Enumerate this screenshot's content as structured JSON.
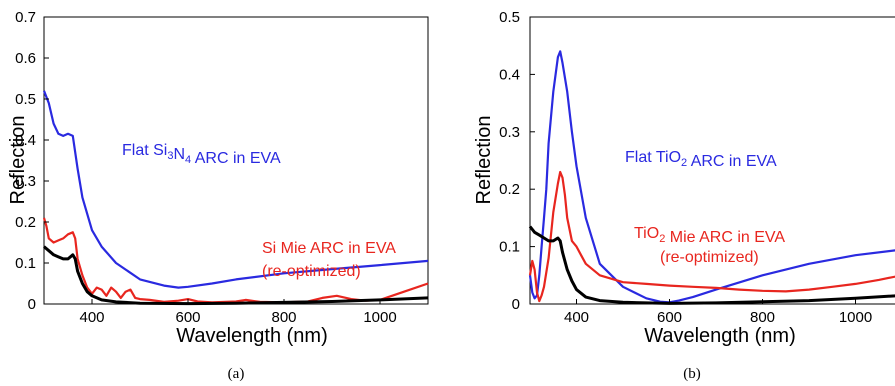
{
  "chart_data": [
    {
      "type": "line",
      "caption": "(a)",
      "xlabel": "Wavelength (nm)",
      "ylabel": "Reflection",
      "xlim": [
        300,
        1100
      ],
      "ylim": [
        0,
        0.7
      ],
      "xticks": [
        "400",
        "600",
        "800",
        "1000"
      ],
      "yticks": [
        "0",
        "0.1",
        "0.2",
        "0.3",
        "0.4",
        "0.5",
        "0.6",
        "0.7"
      ],
      "grid": false,
      "series": [
        {
          "color": "#2a2ae0",
          "x": [
            300,
            310,
            320,
            330,
            340,
            350,
            360,
            370,
            380,
            400,
            420,
            450,
            500,
            550,
            580,
            600,
            650,
            700,
            800,
            900,
            1000,
            1100
          ],
          "y": [
            0.52,
            0.49,
            0.44,
            0.415,
            0.41,
            0.415,
            0.41,
            0.33,
            0.26,
            0.18,
            0.14,
            0.1,
            0.06,
            0.045,
            0.04,
            0.042,
            0.05,
            0.06,
            0.075,
            0.085,
            0.095,
            0.105
          ]
        },
        {
          "color": "#e8261f",
          "x": [
            300,
            305,
            310,
            320,
            330,
            340,
            350,
            360,
            365,
            370,
            380,
            390,
            400,
            410,
            420,
            430,
            440,
            450,
            460,
            470,
            480,
            490,
            500,
            520,
            550,
            580,
            600,
            620,
            650,
            700,
            720,
            750,
            800,
            850,
            880,
            910,
            940,
            970,
            1000,
            1050,
            1100
          ],
          "y": [
            0.21,
            0.19,
            0.16,
            0.15,
            0.155,
            0.16,
            0.17,
            0.175,
            0.16,
            0.11,
            0.07,
            0.04,
            0.025,
            0.04,
            0.035,
            0.02,
            0.04,
            0.03,
            0.015,
            0.03,
            0.035,
            0.015,
            0.012,
            0.01,
            0.005,
            0.008,
            0.012,
            0.006,
            0.004,
            0.006,
            0.01,
            0.005,
            0.004,
            0.006,
            0.015,
            0.02,
            0.012,
            0.008,
            0.01,
            0.03,
            0.05
          ]
        },
        {
          "color": "#000000",
          "x": [
            300,
            310,
            320,
            330,
            340,
            350,
            360,
            365,
            370,
            380,
            390,
            400,
            420,
            450,
            500,
            600,
            700,
            800,
            900,
            1000,
            1100
          ],
          "y": [
            0.14,
            0.13,
            0.12,
            0.115,
            0.11,
            0.11,
            0.12,
            0.11,
            0.08,
            0.05,
            0.03,
            0.02,
            0.01,
            0.005,
            0.002,
            0.001,
            0.002,
            0.004,
            0.006,
            0.01,
            0.015
          ]
        }
      ],
      "annotations": [
        {
          "parts": [
            {
              "t": "Flat Si",
              "sub": false
            },
            {
              "t": "3",
              "sub": true
            },
            {
              "t": "N",
              "sub": false
            },
            {
              "t": "4",
              "sub": true
            },
            {
              "t": " ARC in EVA",
              "sub": false
            }
          ],
          "color": "#2a2ae0"
        },
        {
          "parts": [
            {
              "t": "Si Mie ARC in EVA",
              "sub": false
            }
          ],
          "color": "#e8261f"
        },
        {
          "parts": [
            {
              "t": "(re-optimized)",
              "sub": false
            }
          ],
          "color": "#e8261f"
        }
      ]
    },
    {
      "type": "line",
      "caption": "(b)",
      "xlabel": "Wavelength (nm)",
      "ylabel": "Reflection",
      "xlim": [
        300,
        1100
      ],
      "ylim": [
        0,
        0.5
      ],
      "xticks": [
        "400",
        "600",
        "800",
        "1000"
      ],
      "yticks": [
        "0",
        "0.1",
        "0.2",
        "0.3",
        "0.4",
        "0.5"
      ],
      "grid": false,
      "series": [
        {
          "color": "#2a2ae0",
          "x": [
            300,
            305,
            310,
            315,
            320,
            325,
            330,
            335,
            340,
            350,
            360,
            365,
            370,
            380,
            390,
            400,
            420,
            450,
            500,
            550,
            580,
            600,
            620,
            650,
            700,
            800,
            900,
            1000,
            1100
          ],
          "y": [
            0.05,
            0.02,
            0.01,
            0.015,
            0.05,
            0.1,
            0.15,
            0.2,
            0.28,
            0.37,
            0.43,
            0.44,
            0.42,
            0.37,
            0.3,
            0.24,
            0.15,
            0.07,
            0.03,
            0.01,
            0.004,
            0.003,
            0.006,
            0.012,
            0.025,
            0.05,
            0.07,
            0.085,
            0.095
          ]
        },
        {
          "color": "#e8261f",
          "x": [
            300,
            305,
            310,
            315,
            320,
            325,
            330,
            340,
            350,
            360,
            365,
            370,
            375,
            380,
            390,
            400,
            410,
            420,
            450,
            500,
            550,
            600,
            650,
            700,
            750,
            800,
            850,
            900,
            950,
            1000,
            1050,
            1100
          ],
          "y": [
            0.05,
            0.075,
            0.06,
            0.02,
            0.005,
            0.015,
            0.03,
            0.08,
            0.16,
            0.21,
            0.23,
            0.22,
            0.19,
            0.15,
            0.11,
            0.1,
            0.085,
            0.07,
            0.05,
            0.038,
            0.035,
            0.032,
            0.03,
            0.028,
            0.025,
            0.023,
            0.022,
            0.025,
            0.03,
            0.035,
            0.042,
            0.05
          ]
        },
        {
          "color": "#000000",
          "x": [
            300,
            310,
            320,
            330,
            340,
            350,
            360,
            365,
            370,
            380,
            390,
            400,
            420,
            450,
            500,
            600,
            700,
            800,
            900,
            1000,
            1100
          ],
          "y": [
            0.135,
            0.125,
            0.12,
            0.115,
            0.11,
            0.11,
            0.115,
            0.11,
            0.09,
            0.06,
            0.04,
            0.025,
            0.012,
            0.006,
            0.003,
            0.001,
            0.002,
            0.004,
            0.006,
            0.01,
            0.015
          ]
        }
      ],
      "annotations": [
        {
          "parts": [
            {
              "t": "Flat TiO",
              "sub": false
            },
            {
              "t": "2",
              "sub": true
            },
            {
              "t": " ARC in EVA",
              "sub": false
            }
          ],
          "color": "#2a2ae0"
        },
        {
          "parts": [
            {
              "t": "TiO",
              "sub": false
            },
            {
              "t": "2",
              "sub": true
            },
            {
              "t": " Mie ARC in EVA",
              "sub": false
            }
          ],
          "color": "#e8261f"
        },
        {
          "parts": [
            {
              "t": "(re-optimized)",
              "sub": false
            }
          ],
          "color": "#e8261f"
        }
      ]
    }
  ]
}
